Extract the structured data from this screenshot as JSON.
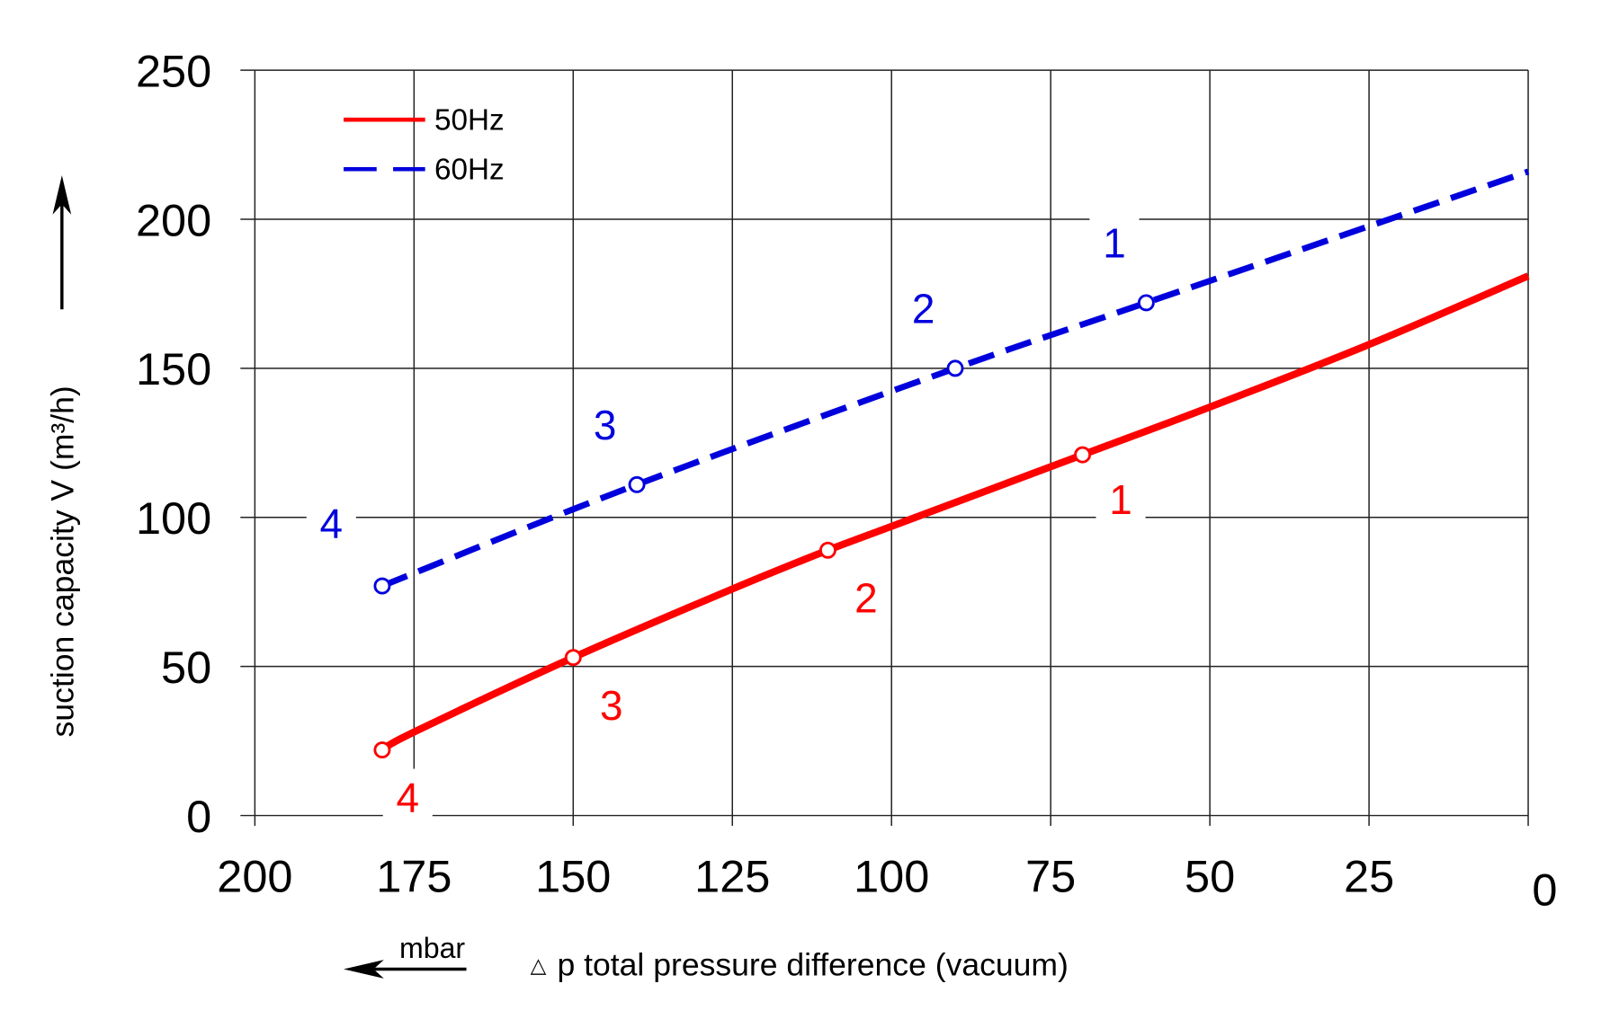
{
  "chart_data": {
    "type": "line",
    "xlabel": "p total pressure difference (vacuum)",
    "xlabel_symbol": "△",
    "xunit": "mbar",
    "ylabel": "suction capacity V (m³/h)",
    "xlim": [
      200,
      0
    ],
    "ylim": [
      0,
      250
    ],
    "x_reversed": true,
    "grid": true,
    "legend_position": "top-left",
    "x_ticks": [
      "200",
      "175",
      "150",
      "125",
      "100",
      "75",
      "50",
      "25",
      "0"
    ],
    "x_tick_values": [
      200,
      175,
      150,
      125,
      100,
      75,
      50,
      25,
      0
    ],
    "y_ticks": [
      "0",
      "50",
      "100",
      "150",
      "200",
      "250"
    ],
    "y_tick_values": [
      0,
      50,
      100,
      150,
      200,
      250
    ],
    "series": [
      {
        "name": "50Hz",
        "color": "#ff0000",
        "style": "solid",
        "x": [
          180,
          175,
          150,
          125,
          110,
          100,
          70,
          50,
          25,
          0
        ],
        "y": [
          22,
          28,
          53,
          76,
          89,
          97,
          121,
          137,
          158,
          181
        ],
        "marked_points": [
          {
            "label": "1",
            "x": 70,
            "y": 121,
            "label_x": 64,
            "label_y": 106
          },
          {
            "label": "2",
            "x": 110,
            "y": 89,
            "label_x": 104,
            "label_y": 73
          },
          {
            "label": "3",
            "x": 150,
            "y": 53,
            "label_x": 144,
            "label_y": 37
          },
          {
            "label": "4",
            "x": 180,
            "y": 22,
            "label_x": 176,
            "label_y": 6
          }
        ]
      },
      {
        "name": "60Hz",
        "color": "#0000dd",
        "style": "dashed",
        "x": [
          180,
          140,
          90,
          60,
          0
        ],
        "y": [
          77,
          111,
          150,
          172,
          216
        ],
        "marked_points": [
          {
            "label": "1",
            "x": 60,
            "y": 172,
            "label_x": 65,
            "label_y": 192
          },
          {
            "label": "2",
            "x": 90,
            "y": 150,
            "label_x": 95,
            "label_y": 170
          },
          {
            "label": "3",
            "x": 140,
            "y": 111,
            "label_x": 145,
            "label_y": 131
          },
          {
            "label": "4",
            "x": 180,
            "y": 77,
            "label_x": 188,
            "label_y": 98
          }
        ]
      }
    ]
  }
}
